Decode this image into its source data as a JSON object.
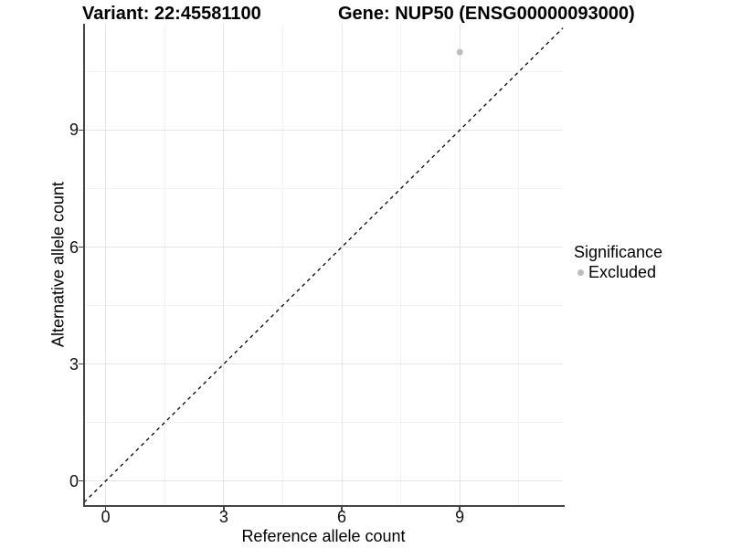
{
  "chart_data": {
    "type": "scatter",
    "title_left": "Variant: 22:45581100",
    "title_right": "Gene: NUP50 (ENSG00000093000)",
    "xlabel": "Reference allele count",
    "ylabel": "Alternative allele count",
    "x_ticks": [
      0,
      3,
      6,
      9
    ],
    "y_ticks": [
      0,
      3,
      6,
      9
    ],
    "x_minor_ticks": [
      1.5,
      4.5,
      7.5,
      10.5
    ],
    "y_minor_ticks": [
      1.5,
      4.5,
      7.5,
      10.5
    ],
    "xlim": [
      -0.55,
      11.62
    ],
    "ylim": [
      -0.62,
      11.73
    ],
    "grid": true,
    "points": [
      {
        "x": 9,
        "y": 11,
        "significance": "Excluded"
      }
    ],
    "identity_line": {
      "slope": 1,
      "intercept": 0,
      "style": "dashed",
      "color": "#000000"
    },
    "legend": {
      "title": "Significance",
      "position": "right",
      "entries": [
        {
          "label": "Excluded",
          "color": "#BDBDBD"
        }
      ]
    },
    "colors": {
      "point": "#BDBDBD",
      "grid_major": "#E4E4E4",
      "grid_minor": "#F2F2F2",
      "axis_line": "#444444",
      "tick_label": "#111111",
      "background": "#FFFFFF"
    }
  }
}
